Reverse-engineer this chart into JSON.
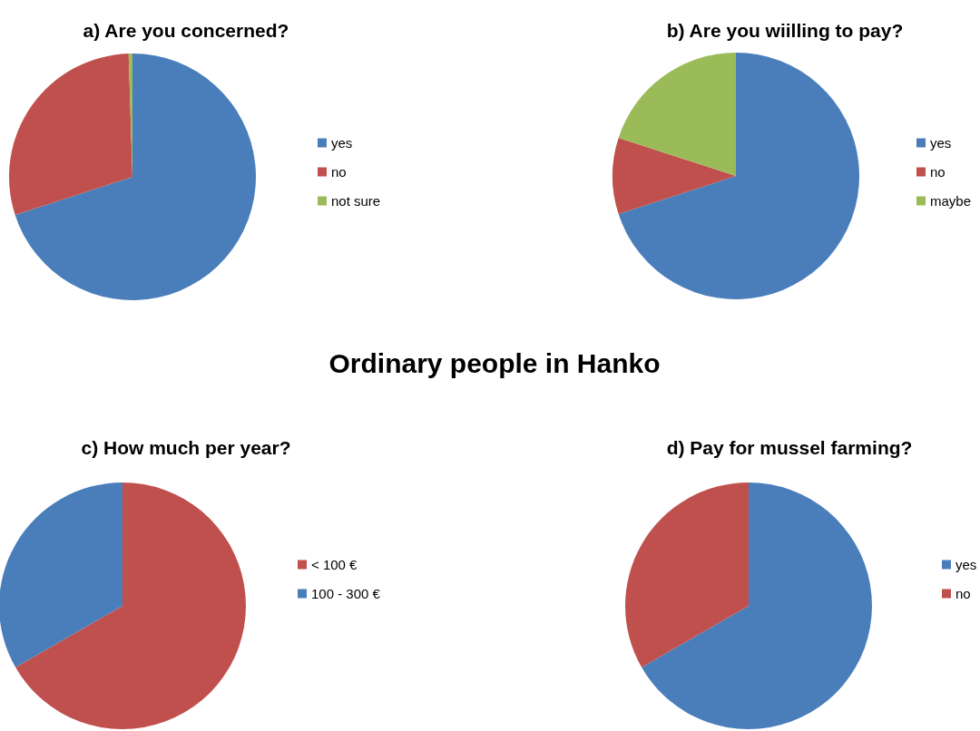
{
  "chart_data": [
    {
      "type": "pie",
      "title": "a) Are you concerned?",
      "categories": [
        "yes",
        "no",
        "not sure"
      ],
      "values": [
        70,
        29.5,
        0.5
      ],
      "colors": [
        "#4a7ebb",
        "#c0504d",
        "#9bbb59"
      ],
      "legend": "right"
    },
    {
      "type": "pie",
      "title": "b) Are you wiilling to pay?",
      "categories": [
        "yes",
        "no",
        "maybe"
      ],
      "values": [
        70,
        10,
        20
      ],
      "colors": [
        "#4a7ebb",
        "#c0504d",
        "#9bbb59"
      ],
      "legend": "right"
    },
    {
      "type": "other",
      "title": "Ordinary people in Hanko"
    },
    {
      "type": "pie",
      "title": "c) How much per year?",
      "categories": [
        "< 100 €",
        "100 - 300 €"
      ],
      "values": [
        66.7,
        33.3
      ],
      "colors": [
        "#c0504d",
        "#4a7ebb"
      ],
      "legend": "right"
    },
    {
      "type": "pie",
      "title": "d) Pay for mussel farming?",
      "categories": [
        "yes",
        "no"
      ],
      "values": [
        66.7,
        33.3
      ],
      "colors": [
        "#4a7ebb",
        "#c0504d"
      ],
      "legend": "right"
    }
  ]
}
